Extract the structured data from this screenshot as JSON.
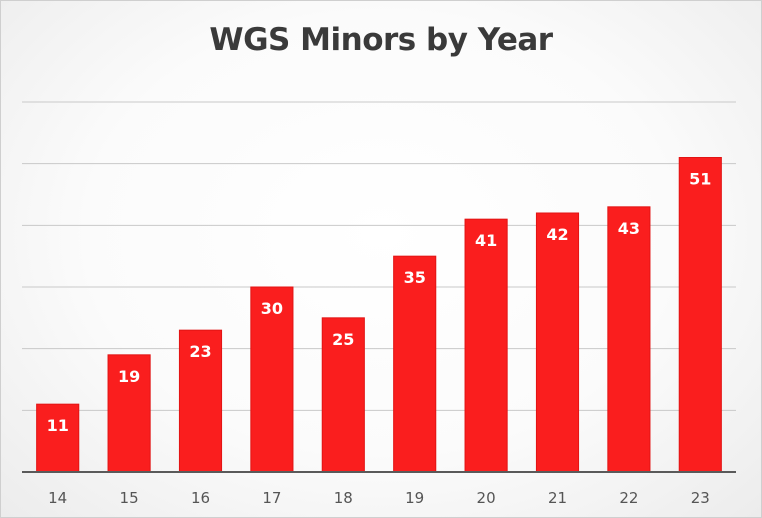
{
  "chart_data": {
    "type": "bar",
    "title": "WGS Minors by Year",
    "xlabel": "",
    "ylabel": "",
    "categories": [
      "14",
      "15",
      "16",
      "17",
      "18",
      "19",
      "20",
      "21",
      "22",
      "23"
    ],
    "values": [
      11,
      19,
      23,
      30,
      25,
      35,
      41,
      42,
      43,
      51
    ],
    "ylim": [
      0,
      60
    ],
    "grid": true,
    "legend": "none",
    "bar_color": "#fa1e1e",
    "data_labels": "inside-top"
  }
}
